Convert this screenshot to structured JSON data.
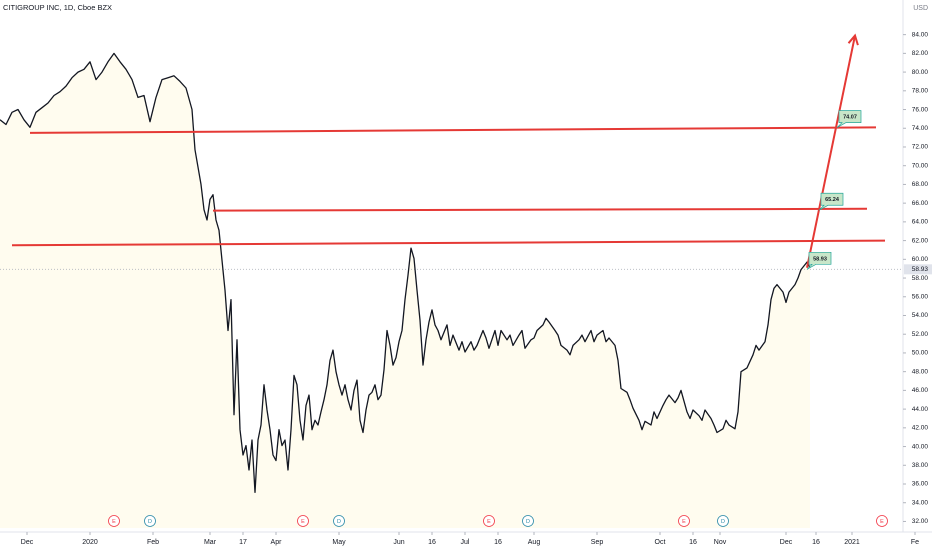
{
  "chart_data": {
    "type": "line",
    "title": "CITIGROUP INC, 1D, Cboe BZX",
    "currency": "USD",
    "color": "#131722",
    "x": [
      0,
      2,
      4,
      6,
      8,
      10,
      12,
      14,
      16,
      18,
      20,
      22,
      24,
      26,
      28,
      30,
      32,
      34,
      36,
      38,
      40,
      42,
      44,
      46,
      48,
      50,
      52,
      54,
      56,
      58,
      60,
      62,
      64,
      65,
      67,
      68,
      69,
      70,
      71,
      72,
      73,
      74,
      75,
      76,
      77,
      78,
      79,
      80,
      81,
      82,
      83,
      84,
      85,
      86,
      87,
      88,
      89,
      90,
      91,
      92,
      93,
      94,
      95,
      96,
      97,
      98,
      99,
      100,
      101,
      102,
      103,
      104,
      105,
      106,
      107,
      108,
      109,
      110,
      111,
      112,
      113,
      114,
      115,
      116,
      117,
      118,
      119,
      120,
      121,
      122,
      123,
      124,
      125,
      126,
      127,
      128,
      129,
      130,
      131,
      132,
      133,
      134,
      135,
      136,
      137,
      138,
      139,
      140,
      141,
      142,
      143,
      144,
      145,
      146,
      147,
      149,
      150,
      151,
      153,
      154,
      155,
      157,
      158,
      159,
      161,
      162,
      163,
      165,
      166,
      167,
      169,
      170,
      171,
      173,
      174,
      175,
      177,
      178,
      179,
      181,
      182,
      183,
      185,
      186,
      187,
      189,
      190,
      191,
      193,
      194,
      195,
      197,
      198,
      199,
      201,
      202,
      203,
      205,
      206,
      207,
      209,
      210,
      211,
      213,
      214,
      215,
      217,
      218,
      219,
      221,
      222,
      223,
      225,
      226,
      227,
      229,
      230,
      231,
      233,
      234,
      235,
      237,
      238,
      239,
      241,
      242,
      243,
      245,
      246,
      247,
      248,
      249,
      251,
      252,
      253,
      255,
      256,
      257,
      258,
      259,
      261,
      262,
      263,
      265,
      266,
      267,
      269,
      270
    ],
    "values": [
      74.9,
      74.4,
      75.7,
      76.0,
      74.9,
      74.1,
      75.7,
      76.2,
      76.7,
      77.5,
      77.9,
      78.5,
      79.4,
      80.0,
      80.3,
      81.1,
      79.2,
      80.0,
      81.1,
      82.0,
      81.1,
      80.3,
      79.2,
      77.3,
      77.5,
      74.7,
      77.3,
      79.2,
      79.4,
      79.6,
      79.0,
      78.3,
      76.0,
      71.7,
      68.0,
      65.3,
      64.2,
      66.4,
      66.9,
      64.2,
      63.1,
      59.9,
      56.7,
      52.4,
      55.7,
      43.4,
      51.4,
      41.8,
      39.1,
      40.1,
      37.5,
      40.7,
      35.1,
      40.7,
      42.3,
      46.6,
      43.9,
      41.8,
      39.1,
      38.5,
      41.8,
      40.1,
      40.7,
      37.5,
      41.8,
      47.6,
      46.6,
      42.8,
      40.7,
      44.4,
      45.5,
      41.8,
      42.8,
      42.3,
      43.7,
      45.0,
      46.6,
      49.2,
      50.3,
      48.0,
      46.6,
      45.5,
      46.6,
      45.0,
      43.9,
      46.0,
      47.1,
      42.8,
      41.5,
      43.9,
      45.5,
      45.8,
      46.6,
      45.0,
      45.5,
      48.2,
      52.4,
      50.8,
      48.7,
      49.5,
      51.2,
      52.4,
      55.7,
      58.3,
      61.2,
      60.1,
      56.7,
      53.5,
      48.7,
      51.4,
      53.3,
      54.6,
      53.0,
      52.4,
      51.4,
      53.0,
      50.8,
      51.9,
      50.3,
      51.2,
      50.1,
      51.2,
      50.3,
      50.8,
      52.4,
      51.6,
      50.5,
      52.4,
      50.8,
      52.4,
      51.4,
      51.9,
      50.8,
      51.9,
      52.4,
      50.5,
      51.4,
      51.6,
      52.4,
      53.0,
      53.7,
      53.3,
      52.4,
      51.9,
      50.8,
      50.3,
      49.8,
      50.8,
      51.4,
      51.9,
      51.2,
      52.4,
      51.2,
      51.9,
      52.4,
      51.2,
      51.6,
      50.8,
      49.2,
      46.2,
      45.8,
      45.0,
      44.1,
      42.8,
      41.8,
      42.7,
      42.3,
      43.7,
      43.0,
      44.4,
      45.0,
      45.5,
      44.7,
      45.2,
      46.0,
      43.7,
      43.0,
      43.9,
      43.3,
      42.8,
      43.9,
      43.0,
      42.3,
      41.5,
      41.9,
      42.8,
      42.3,
      41.9,
      43.7,
      48.0,
      48.2,
      48.4,
      49.8,
      50.8,
      50.3,
      51.2,
      53.0,
      55.7,
      56.9,
      57.3,
      56.5,
      55.4,
      56.5,
      57.3,
      58.0,
      58.9,
      59.7,
      59.1
    ],
    "xlim": [
      0,
      310
    ],
    "ylim": [
      31.3,
      87.7
    ],
    "xticks": [
      {
        "value": 9,
        "label": "Dec"
      },
      {
        "value": 30,
        "label": "2020"
      },
      {
        "value": 51,
        "label": "Feb"
      },
      {
        "value": 70,
        "label": "Mar"
      },
      {
        "value": 81,
        "label": "17"
      },
      {
        "value": 92,
        "label": "Apr"
      },
      {
        "value": 113,
        "label": "May"
      },
      {
        "value": 133,
        "label": "Jun"
      },
      {
        "value": 144,
        "label": "16"
      },
      {
        "value": 155,
        "label": "Jul"
      },
      {
        "value": 166,
        "label": "16"
      },
      {
        "value": 178,
        "label": "Aug"
      },
      {
        "value": 199,
        "label": "Sep"
      },
      {
        "value": 220,
        "label": "Oct"
      },
      {
        "value": 231,
        "label": "16"
      },
      {
        "value": 240,
        "label": "Nov"
      },
      {
        "value": 262,
        "label": "Dec"
      },
      {
        "value": 272,
        "label": "16"
      },
      {
        "value": 284,
        "label": "2021"
      },
      {
        "value": 305,
        "label": "Fe"
      }
    ],
    "yticks": [
      {
        "value": 32,
        "label": "32.00"
      },
      {
        "value": 34,
        "label": "34.00"
      },
      {
        "value": 36,
        "label": "36.00"
      },
      {
        "value": 38,
        "label": "38.00"
      },
      {
        "value": 40,
        "label": "40.00"
      },
      {
        "value": 42,
        "label": "42.00"
      },
      {
        "value": 44,
        "label": "44.00"
      },
      {
        "value": 46,
        "label": "46.00"
      },
      {
        "value": 48,
        "label": "48.00"
      },
      {
        "value": 50,
        "label": "50.00"
      },
      {
        "value": 52,
        "label": "52.00"
      },
      {
        "value": 54,
        "label": "54.00"
      },
      {
        "value": 56,
        "label": "56.00"
      },
      {
        "value": 58,
        "label": "58.00"
      },
      {
        "value": 60,
        "label": "60.00"
      },
      {
        "value": 62,
        "label": "62.00"
      },
      {
        "value": 64,
        "label": "64.00"
      },
      {
        "value": 66,
        "label": "66.00"
      },
      {
        "value": 68,
        "label": "68.00"
      },
      {
        "value": 70,
        "label": "70.00"
      },
      {
        "value": 72,
        "label": "72.00"
      },
      {
        "value": 74,
        "label": "74.00"
      },
      {
        "value": 76,
        "label": "76.00"
      },
      {
        "value": 78,
        "label": "78.00"
      },
      {
        "value": 80,
        "label": "80.00"
      },
      {
        "value": 82,
        "label": "82.00"
      },
      {
        "value": 84,
        "label": "84.00"
      }
    ],
    "last_price": 58.93,
    "drawings": [
      {
        "type": "line",
        "color": "#e53935",
        "x": [
          10,
          292
        ],
        "y": [
          73.5,
          74.1
        ]
      },
      {
        "type": "line",
        "color": "#e53935",
        "x": [
          71,
          289
        ],
        "y": [
          65.2,
          65.4
        ]
      },
      {
        "type": "line",
        "color": "#e53935",
        "x": [
          4,
          295
        ],
        "y": [
          61.5,
          62.0
        ]
      },
      {
        "type": "arrow",
        "color": "#e53935",
        "x": [
          269,
          285
        ],
        "y": [
          59.1,
          83.9
        ]
      }
    ],
    "callouts": [
      {
        "x": 279,
        "y": 74.07
      },
      {
        "x": 273,
        "y": 65.24
      },
      {
        "x": 269,
        "y": 58.93
      }
    ],
    "events": [
      {
        "x": 38,
        "label": "E",
        "color": "#f23645"
      },
      {
        "x": 50,
        "label": "D",
        "color": "#2a8aa8"
      },
      {
        "x": 101,
        "label": "E",
        "color": "#f23645"
      },
      {
        "x": 113,
        "label": "D",
        "color": "#2a8aa8"
      },
      {
        "x": 163,
        "label": "E",
        "color": "#f23645"
      },
      {
        "x": 176,
        "label": "D",
        "color": "#2a8aa8"
      },
      {
        "x": 228,
        "label": "E",
        "color": "#f23645"
      },
      {
        "x": 241,
        "label": "D",
        "color": "#2a8aa8"
      },
      {
        "x": 294,
        "label": "E",
        "color": "#f23645"
      }
    ]
  }
}
